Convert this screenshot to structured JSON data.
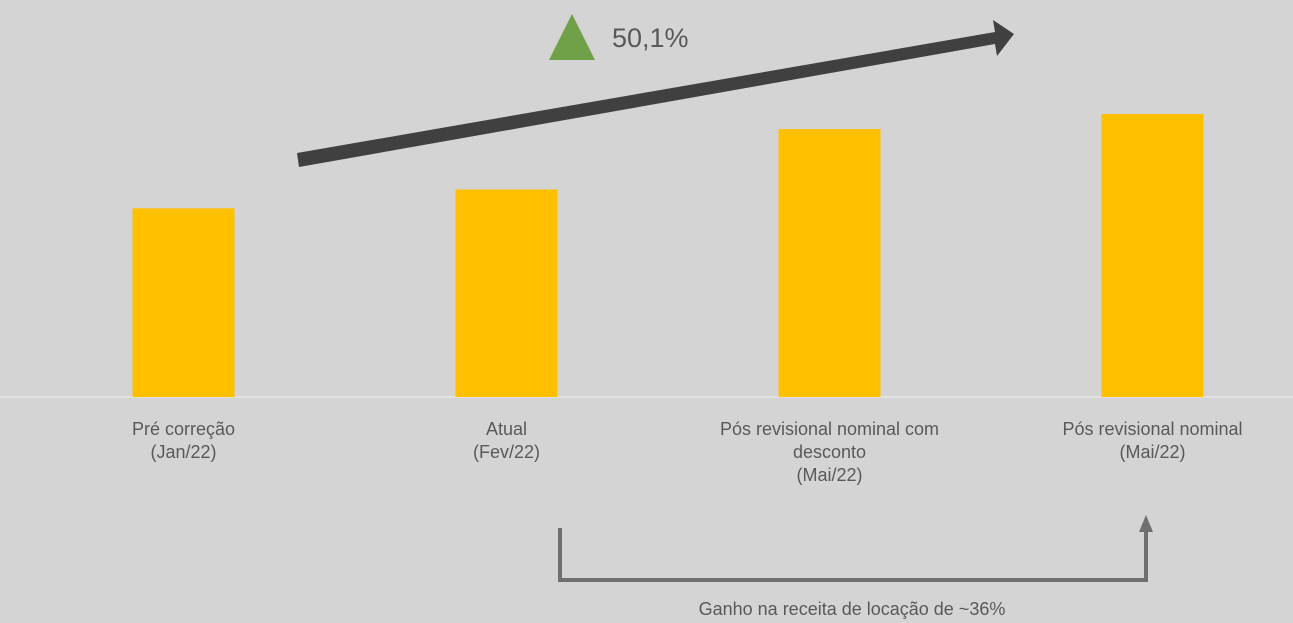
{
  "chart_data": {
    "type": "bar",
    "categories": [
      [
        "Pré correção",
        "(Jan/22)"
      ],
      [
        "Atual",
        "(Fev/22)"
      ],
      [
        "Pós revisional nominal com",
        "desconto",
        "(Mai/22)"
      ],
      [
        "Pós revisional nominal",
        "(Mai/22)"
      ]
    ],
    "values": [
      100,
      110,
      142,
      150
    ],
    "color": "#ffc000",
    "annotations": [
      "50,1%",
      "Ganho na receita de locação de ~36%"
    ]
  }
}
